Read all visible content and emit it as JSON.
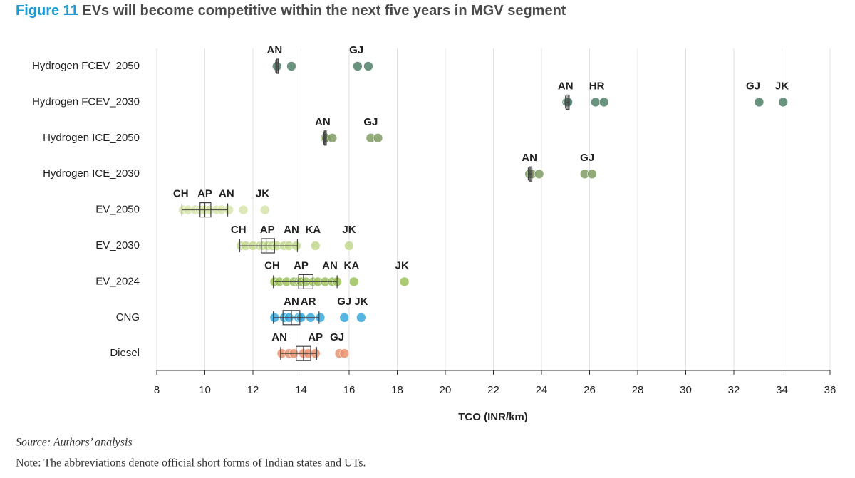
{
  "chart_data": {
    "type": "strip",
    "title_prefix": "Figure 11",
    "title": "EVs will become competitive within the next five years in MGV segment",
    "x_label": "TCO (INR/km)",
    "source": "Source: Authors’ analysis",
    "note": "Note: The abbreviations denote official short forms of Indian states and UTs.",
    "xlim": [
      8,
      36
    ],
    "xticks": [
      8,
      10,
      12,
      14,
      16,
      18,
      20,
      22,
      24,
      26,
      28,
      30,
      32,
      34,
      36
    ],
    "grid": true,
    "categories": [
      "Hydrogen FCEV_2050",
      "Hydrogen FCEV_2030",
      "Hydrogen ICE_2050",
      "Hydrogen ICE_2030",
      "EV_2050",
      "EV_2030",
      "EV_2024",
      "CNG",
      "Diesel"
    ],
    "colors": [
      "#4f7f69",
      "#4f7f69",
      "#7f9c63",
      "#7f9c63",
      "#d6e4aa",
      "#c2d88e",
      "#9cc25a",
      "#37a8da",
      "#e8906f"
    ],
    "points": [
      [
        13.0,
        13.6,
        16.35,
        16.8
      ],
      [
        25.05,
        25.1,
        26.25,
        26.6,
        33.05,
        34.05
      ],
      [
        15.0,
        15.05,
        15.3,
        16.9,
        17.2
      ],
      [
        23.5,
        23.6,
        23.9,
        25.8,
        26.1
      ],
      [
        9.1,
        9.3,
        9.6,
        9.8,
        9.9,
        10.0,
        10.2,
        10.5,
        10.7,
        11.0,
        11.6,
        12.5
      ],
      [
        11.5,
        11.7,
        12.0,
        12.3,
        12.4,
        12.6,
        12.8,
        13.0,
        13.3,
        13.5,
        13.8,
        14.6,
        16.0
      ],
      [
        12.9,
        13.1,
        13.4,
        13.7,
        13.9,
        14.0,
        14.2,
        14.5,
        14.7,
        15.0,
        15.3,
        15.5,
        16.2,
        18.3
      ],
      [
        12.9,
        13.3,
        13.5,
        13.9,
        14.0,
        14.4,
        14.8,
        15.8,
        16.5
      ],
      [
        13.2,
        13.5,
        13.7,
        14.1,
        14.3,
        14.6,
        15.6,
        15.8
      ]
    ],
    "boxes": [
      {
        "low": 12.95,
        "q1": 12.97,
        "median": 13.0,
        "q3": 13.05,
        "high": 13.05
      },
      {
        "low": 25.0,
        "q1": 25.03,
        "median": 25.1,
        "q3": 25.15,
        "high": 25.15
      },
      {
        "low": 14.95,
        "q1": 14.97,
        "median": 15.0,
        "q3": 15.05,
        "high": 15.05
      },
      {
        "low": 23.45,
        "q1": 23.5,
        "median": 23.55,
        "q3": 23.6,
        "high": 23.6
      },
      {
        "low": 9.05,
        "q1": 9.8,
        "median": 10.0,
        "q3": 10.25,
        "high": 10.95
      },
      {
        "low": 11.45,
        "q1": 12.35,
        "median": 12.55,
        "q3": 12.9,
        "high": 13.85
      },
      {
        "low": 12.85,
        "q1": 13.9,
        "median": 14.1,
        "q3": 14.5,
        "high": 15.5
      },
      {
        "low": 12.85,
        "q1": 13.25,
        "median": 13.6,
        "q3": 13.95,
        "high": 14.75
      },
      {
        "low": 13.15,
        "q1": 13.8,
        "median": 14.1,
        "q3": 14.4,
        "high": 14.65
      }
    ],
    "labels": [
      [
        {
          "text": "AN",
          "value": 12.9
        },
        {
          "text": "GJ",
          "value": 16.3
        }
      ],
      [
        {
          "text": "AN",
          "value": 25.0
        },
        {
          "text": "HR",
          "value": 26.3
        },
        {
          "text": "GJ",
          "value": 32.8
        },
        {
          "text": "JK",
          "value": 34.0
        }
      ],
      [
        {
          "text": "AN",
          "value": 14.9
        },
        {
          "text": "GJ",
          "value": 16.9
        }
      ],
      [
        {
          "text": "AN",
          "value": 23.5
        },
        {
          "text": "GJ",
          "value": 25.9
        }
      ],
      [
        {
          "text": "CH",
          "value": 9.0
        },
        {
          "text": "AP",
          "value": 10.0
        },
        {
          "text": "AN",
          "value": 10.9
        },
        {
          "text": "JK",
          "value": 12.4
        }
      ],
      [
        {
          "text": "CH",
          "value": 11.4
        },
        {
          "text": "AP",
          "value": 12.6
        },
        {
          "text": "AN",
          "value": 13.6
        },
        {
          "text": "KA",
          "value": 14.5
        },
        {
          "text": "JK",
          "value": 16.0
        }
      ],
      [
        {
          "text": "CH",
          "value": 12.8
        },
        {
          "text": "AP",
          "value": 14.0
        },
        {
          "text": "AN",
          "value": 15.2
        },
        {
          "text": "KA",
          "value": 16.1
        },
        {
          "text": "JK",
          "value": 18.2
        }
      ],
      [
        {
          "text": "AN",
          "value": 13.6
        },
        {
          "text": "AR",
          "value": 14.3
        },
        {
          "text": "GJ",
          "value": 15.8
        },
        {
          "text": "JK",
          "value": 16.5
        }
      ],
      [
        {
          "text": "AN",
          "value": 13.1
        },
        {
          "text": "AP",
          "value": 14.6
        },
        {
          "text": "GJ",
          "value": 15.5
        }
      ]
    ]
  }
}
